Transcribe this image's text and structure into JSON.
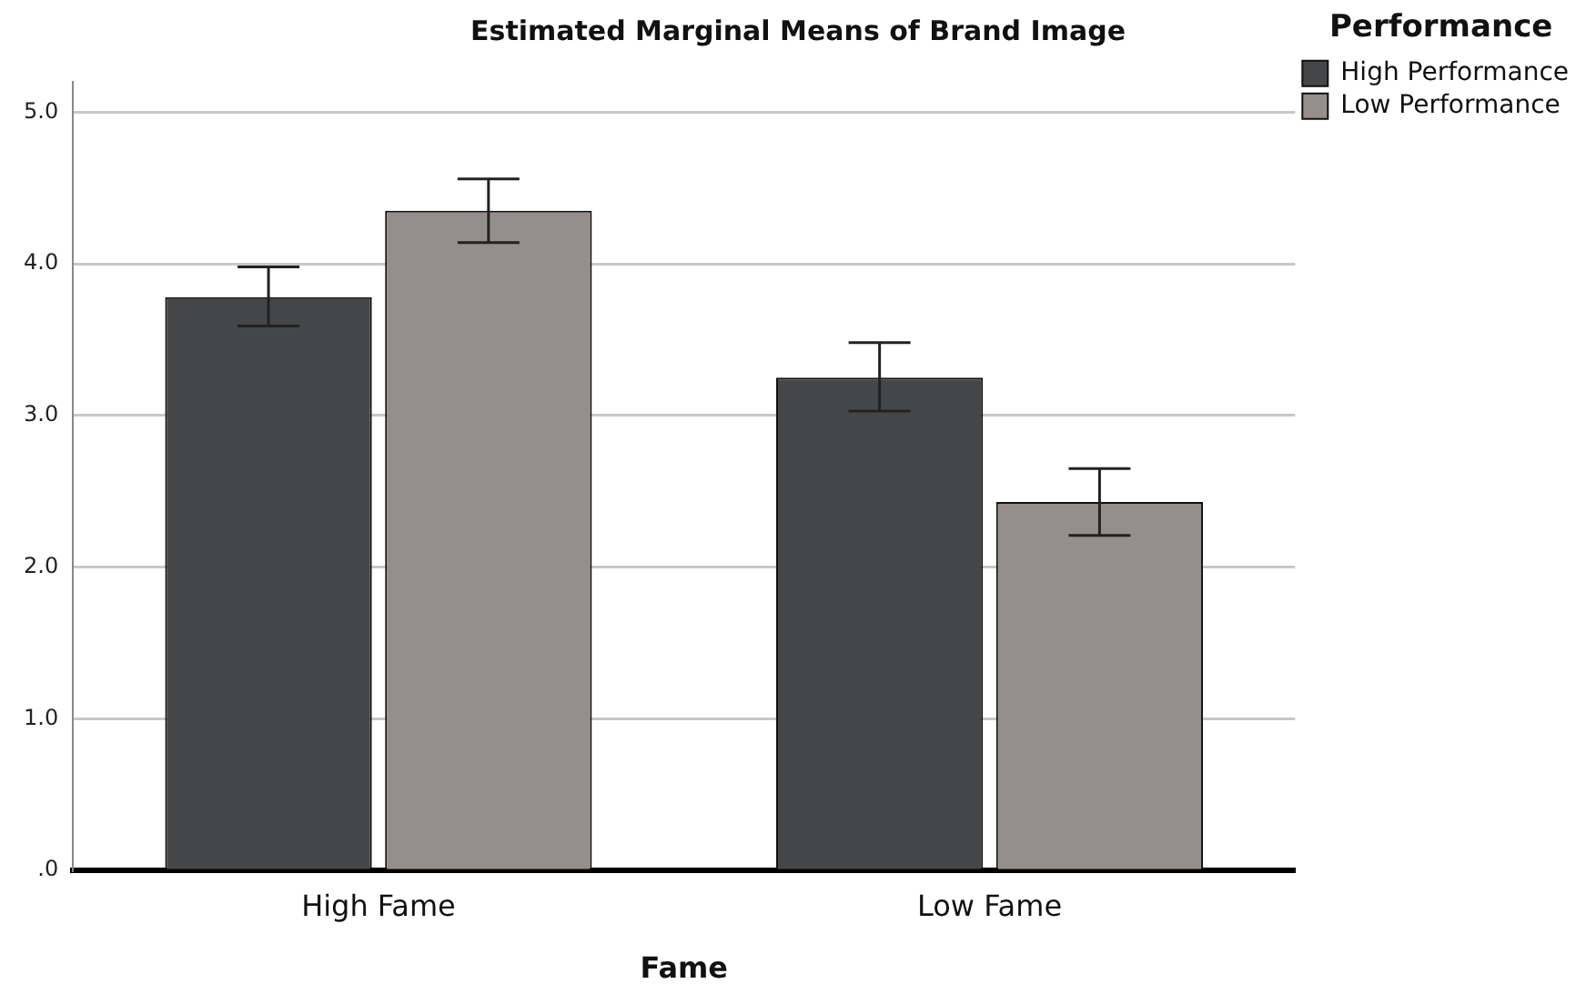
{
  "chart_data": {
    "type": "bar",
    "title": "Estimated Marginal Means of Brand Image",
    "xlabel": "Fame",
    "legend_title": "Performance",
    "categories": [
      "High Fame",
      "Low Fame"
    ],
    "series": [
      {
        "name": "High Performance",
        "color": "#444648",
        "values": [
          3.78,
          3.25
        ],
        "errors": [
          [
            3.59,
            3.98
          ],
          [
            3.03,
            3.48
          ]
        ]
      },
      {
        "name": "Low Performance",
        "color": "#948f8d",
        "values": [
          4.35,
          2.43
        ],
        "errors": [
          [
            4.14,
            4.56
          ],
          [
            2.21,
            2.65
          ]
        ]
      }
    ],
    "ylim": [
      0,
      5.2
    ],
    "yticks": [
      {
        "value": 0,
        "label": ".0"
      },
      {
        "value": 1,
        "label": "1.0"
      },
      {
        "value": 2,
        "label": "2.0"
      },
      {
        "value": 3,
        "label": "3.0"
      },
      {
        "value": 4,
        "label": "4.0"
      },
      {
        "value": 5,
        "label": "5.0"
      }
    ],
    "grid": "y",
    "legend": "top right"
  }
}
